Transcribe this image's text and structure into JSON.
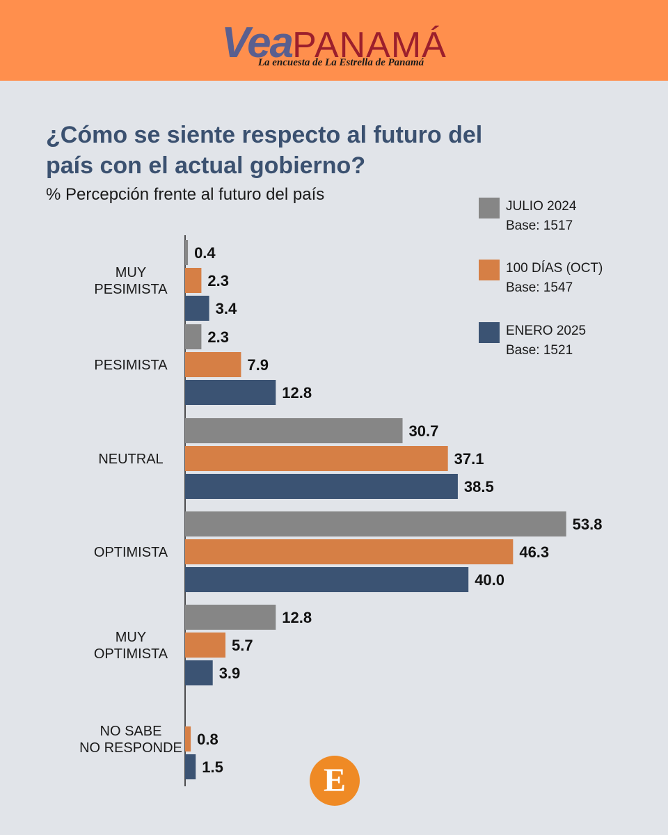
{
  "header": {
    "logo_vea": "Vea",
    "logo_panama": "PANAMÁ",
    "tagline": "La encuesta de La Estrella de Panamá"
  },
  "footer": {
    "logo_letter": "E"
  },
  "colors": {
    "header_bg": "#ff8f4d",
    "page_bg": "#e1e4e9",
    "title": "#3b5170"
  },
  "chart_data": {
    "type": "bar",
    "orientation": "horizontal",
    "title": "¿Cómo se siente respecto al futuro del país con el actual gobierno?",
    "subtitle": "% Percepción frente al futuro del país",
    "categories": [
      [
        "MUY",
        "PESIMISTA"
      ],
      [
        "PESIMISTA"
      ],
      [
        "NEUTRAL"
      ],
      [
        "OPTIMISTA"
      ],
      [
        "MUY",
        "OPTIMISTA"
      ],
      [
        "NO SABE",
        "NO RESPONDE"
      ]
    ],
    "series": [
      {
        "name": "JULIO 2024",
        "base": "Base: 1517",
        "color": "#868686",
        "values": [
          0.4,
          2.3,
          30.7,
          53.8,
          12.8,
          null
        ]
      },
      {
        "name": "100 DÍAS (OCT)",
        "base": "Base: 1547",
        "color": "#d67f45",
        "values": [
          2.3,
          7.9,
          37.1,
          46.3,
          5.7,
          0.8
        ]
      },
      {
        "name": "ENERO 2025",
        "base": "Base: 1521",
        "color": "#3b5373",
        "values": [
          3.4,
          12.8,
          38.5,
          40.0,
          3.9,
          1.5
        ]
      }
    ],
    "xlim": [
      0,
      55
    ],
    "value_format": "one_decimal",
    "legend_position": "right",
    "grid": false
  }
}
